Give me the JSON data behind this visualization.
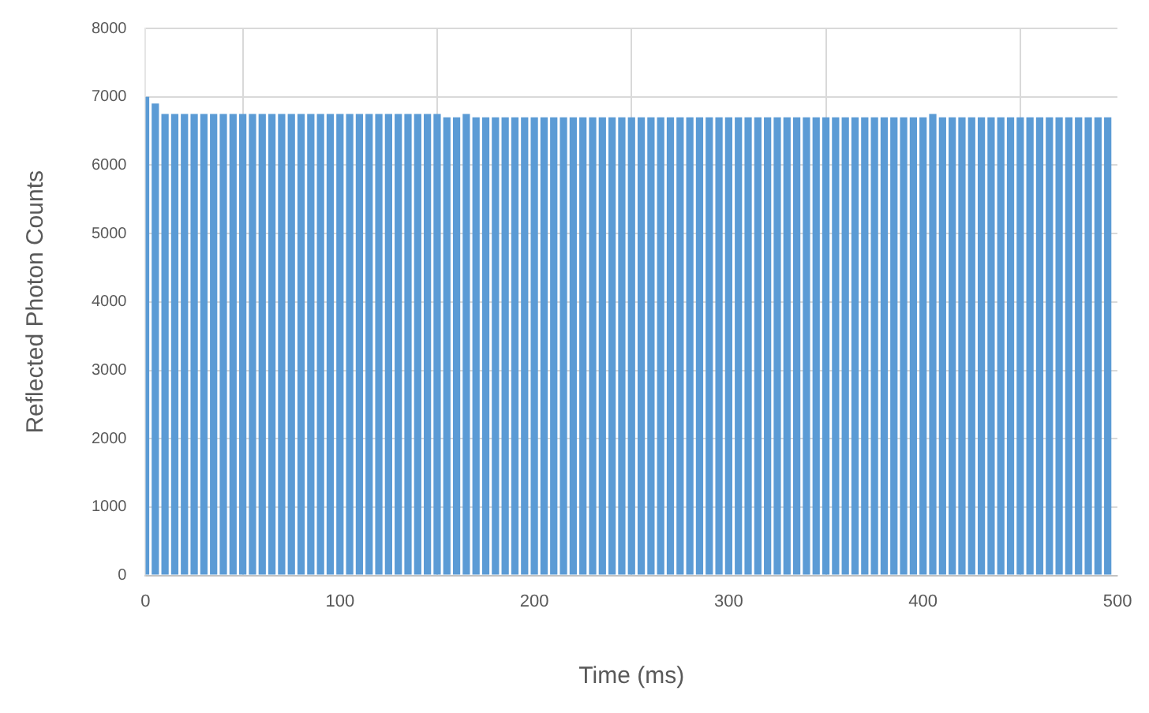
{
  "chart_data": {
    "type": "bar",
    "xlabel": "Time (ms)",
    "ylabel": "Reflected Photon Counts",
    "x": [
      0,
      5,
      10,
      15,
      20,
      25,
      30,
      35,
      40,
      45,
      50,
      55,
      60,
      65,
      70,
      75,
      80,
      85,
      90,
      95,
      100,
      105,
      110,
      115,
      120,
      125,
      130,
      135,
      140,
      145,
      150,
      155,
      160,
      165,
      170,
      175,
      180,
      185,
      190,
      195,
      200,
      205,
      210,
      215,
      220,
      225,
      230,
      235,
      240,
      245,
      250,
      255,
      260,
      265,
      270,
      275,
      280,
      285,
      290,
      295,
      300,
      305,
      310,
      315,
      320,
      325,
      330,
      335,
      340,
      345,
      350,
      355,
      360,
      365,
      370,
      375,
      380,
      385,
      390,
      395,
      400,
      405,
      410,
      415,
      420,
      425,
      430,
      435,
      440,
      445,
      450,
      455,
      460,
      465,
      470,
      475,
      480,
      485,
      490,
      495
    ],
    "values": [
      7000,
      6900,
      6750,
      6750,
      6750,
      6750,
      6750,
      6750,
      6750,
      6750,
      6750,
      6750,
      6750,
      6750,
      6750,
      6750,
      6750,
      6750,
      6750,
      6750,
      6750,
      6750,
      6750,
      6750,
      6750,
      6750,
      6750,
      6750,
      6750,
      6750,
      6750,
      6700,
      6700,
      6750,
      6700,
      6700,
      6700,
      6700,
      6700,
      6700,
      6700,
      6700,
      6700,
      6700,
      6700,
      6700,
      6700,
      6700,
      6700,
      6700,
      6700,
      6700,
      6700,
      6700,
      6700,
      6700,
      6700,
      6700,
      6700,
      6700,
      6700,
      6700,
      6700,
      6700,
      6700,
      6700,
      6700,
      6700,
      6700,
      6700,
      6700,
      6700,
      6700,
      6700,
      6700,
      6700,
      6700,
      6700,
      6700,
      6700,
      6700,
      6750,
      6700,
      6700,
      6700,
      6700,
      6700,
      6700,
      6700,
      6700,
      6700,
      6700,
      6700,
      6700,
      6700,
      6700,
      6700,
      6700,
      6700,
      6700
    ],
    "color": "#5b9bd5",
    "xlim": [
      0,
      500
    ],
    "xticks": [
      0,
      100,
      200,
      300,
      400,
      500
    ],
    "ylim": [
      0,
      8000
    ],
    "yticks": [
      0,
      1000,
      2000,
      3000,
      4000,
      5000,
      6000,
      7000,
      8000
    ],
    "grid": true
  }
}
